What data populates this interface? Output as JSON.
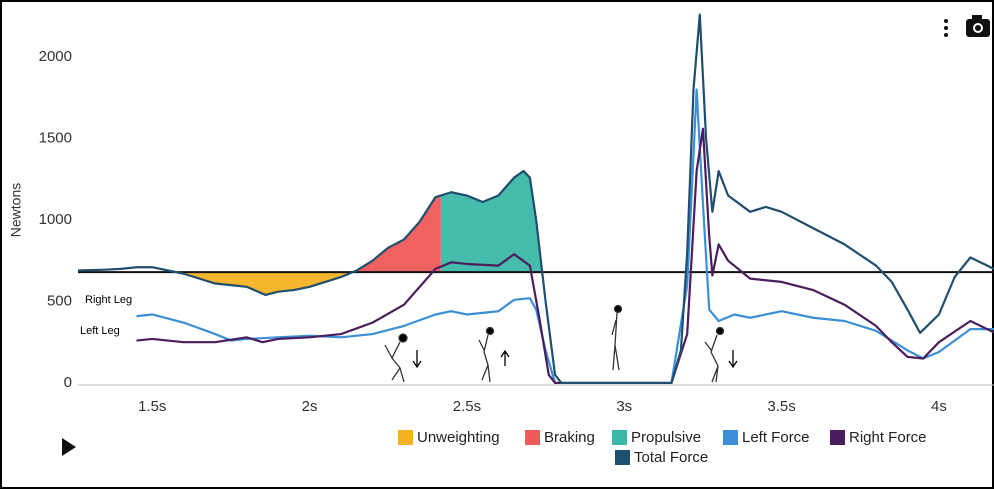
{
  "chart_data": {
    "type": "line",
    "y_label": "Newtons",
    "xlim": [
      1.264,
      4.175
    ],
    "ylim": [
      -74,
      2319
    ],
    "xticks": [
      {
        "value": 1.5,
        "label": "1.5s"
      },
      {
        "value": 2,
        "label": "2s"
      },
      {
        "value": 2.5,
        "label": "2.5s"
      },
      {
        "value": 3,
        "label": "3s"
      },
      {
        "value": 3.5,
        "label": "3.5s"
      },
      {
        "value": 4,
        "label": "4s"
      }
    ],
    "yticks": [
      0,
      500,
      1000,
      1500,
      2000
    ],
    "grid": false,
    "bodyweight": 680,
    "annotations": [
      "Right Leg",
      "Left Leg"
    ],
    "phases": [
      {
        "name": "Unweighting",
        "color": "#f5b324",
        "start": 1.58,
        "end": 2.15
      },
      {
        "name": "Braking",
        "color": "#ef5a5a",
        "start": 2.15,
        "end": 2.417
      },
      {
        "name": "Propulsive",
        "color": "#3bb8a8",
        "start": 2.417,
        "end": 2.74
      }
    ],
    "series": [
      {
        "name": "Left Force",
        "color": "#3a8fd6",
        "x": [
          1.45,
          1.5,
          1.6,
          1.7,
          1.75,
          1.8,
          1.9,
          2.0,
          2.1,
          2.2,
          2.3,
          2.4,
          2.45,
          2.5,
          2.6,
          2.65,
          2.7,
          2.72,
          2.75,
          2.78,
          3.15,
          3.2,
          3.23,
          3.25,
          3.27,
          3.3,
          3.35,
          3.4,
          3.5,
          3.6,
          3.7,
          3.8,
          3.9,
          3.95,
          4.0,
          4.1,
          4.175
        ],
        "values": [
          410,
          420,
          370,
          300,
          260,
          270,
          280,
          290,
          280,
          300,
          350,
          420,
          440,
          420,
          440,
          510,
          520,
          450,
          200,
          0,
          0,
          600,
          1800,
          1100,
          450,
          380,
          420,
          400,
          440,
          400,
          380,
          320,
          200,
          150,
          190,
          330,
          330
        ]
      },
      {
        "name": "Right Force",
        "color": "#4b1d5c",
        "x": [
          1.45,
          1.5,
          1.6,
          1.7,
          1.8,
          1.85,
          1.9,
          2.0,
          2.1,
          2.2,
          2.3,
          2.4,
          2.45,
          2.5,
          2.6,
          2.65,
          2.7,
          2.73,
          2.76,
          2.78,
          3.15,
          3.2,
          3.23,
          3.25,
          3.27,
          3.28,
          3.3,
          3.33,
          3.4,
          3.5,
          3.6,
          3.7,
          3.8,
          3.85,
          3.9,
          3.95,
          4.0,
          4.1,
          4.175
        ],
        "values": [
          260,
          270,
          250,
          250,
          280,
          250,
          270,
          280,
          300,
          370,
          480,
          700,
          740,
          730,
          720,
          790,
          720,
          400,
          50,
          0,
          0,
          300,
          1300,
          1560,
          900,
          660,
          850,
          750,
          640,
          620,
          570,
          480,
          350,
          250,
          160,
          150,
          250,
          380,
          310
        ]
      },
      {
        "name": "Total Force",
        "color": "#1f4e6e",
        "x": [
          1.264,
          1.35,
          1.4,
          1.45,
          1.5,
          1.55,
          1.6,
          1.65,
          1.7,
          1.75,
          1.8,
          1.86,
          1.9,
          1.95,
          2.0,
          2.05,
          2.1,
          2.15,
          2.2,
          2.25,
          2.3,
          2.35,
          2.4,
          2.45,
          2.5,
          2.55,
          2.6,
          2.65,
          2.68,
          2.7,
          2.72,
          2.75,
          2.78,
          2.8,
          3.15,
          3.18,
          3.2,
          3.22,
          3.24,
          3.26,
          3.28,
          3.3,
          3.33,
          3.4,
          3.45,
          3.5,
          3.6,
          3.7,
          3.8,
          3.85,
          3.9,
          3.94,
          4.0,
          4.05,
          4.1,
          4.175
        ],
        "values": [
          690,
          695,
          700,
          710,
          710,
          690,
          670,
          640,
          610,
          600,
          590,
          540,
          560,
          570,
          590,
          620,
          650,
          690,
          750,
          830,
          880,
          990,
          1140,
          1170,
          1150,
          1110,
          1150,
          1260,
          1300,
          1260,
          1000,
          500,
          50,
          0,
          0,
          200,
          800,
          1800,
          2260,
          1500,
          1050,
          1300,
          1150,
          1050,
          1080,
          1050,
          950,
          850,
          720,
          620,
          450,
          307,
          420,
          650,
          770,
          700
        ]
      }
    ]
  }
}
